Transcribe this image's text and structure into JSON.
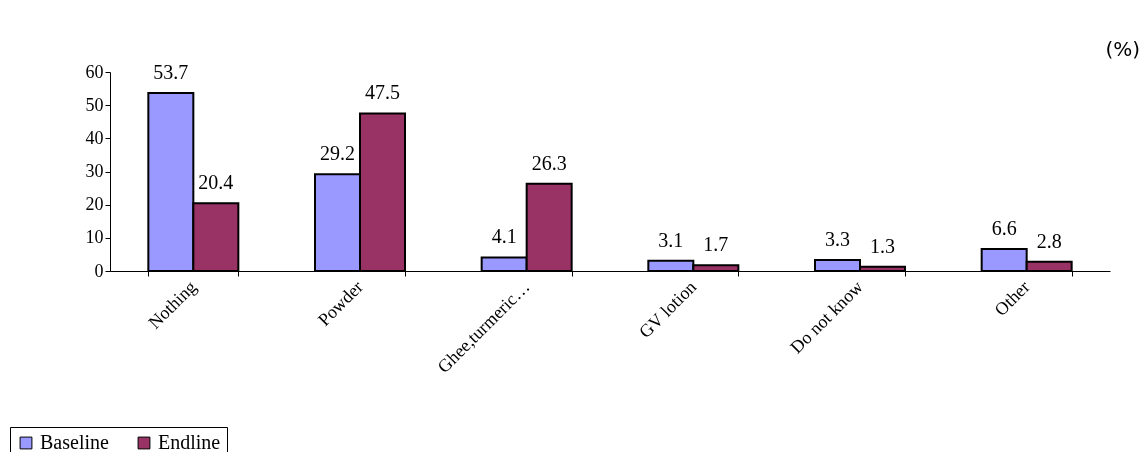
{
  "chart_data": {
    "type": "bar",
    "categories": [
      "Nothing",
      "Powder",
      "Ghee,turmeric…",
      "GV lotion",
      "Do not know",
      "Other"
    ],
    "series": [
      {
        "name": "Baseline",
        "color": "#9999ff",
        "values": [
          53.7,
          29.2,
          4.1,
          3.1,
          3.3,
          6.6
        ]
      },
      {
        "name": "Endline",
        "color": "#993366",
        "values": [
          20.4,
          47.5,
          26.3,
          1.7,
          1.3,
          2.8
        ]
      }
    ],
    "ylim": [
      0,
      60
    ],
    "yticks": [
      0,
      10,
      20,
      30,
      40,
      50,
      60
    ],
    "grid": false,
    "data_labels": true,
    "legend": "bottom left",
    "annotations": [
      "(%)"
    ]
  }
}
